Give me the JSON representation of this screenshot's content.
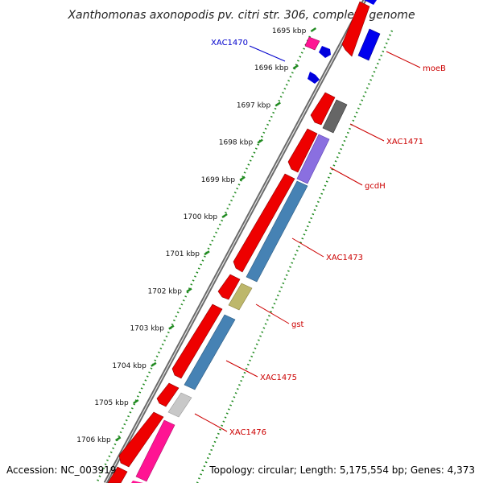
{
  "title": "Xanthomonas axonopodis pv. citri str. 306, complete genome",
  "accession": "Accession: NC_003919",
  "topology": "Topology: circular; Length: 5,175,554 bp; Genes: 4,373",
  "ticks": [
    "1695 kbp",
    "1696 kbp",
    "1697 kbp",
    "1698 kbp",
    "1699 kbp",
    "1700 kbp",
    "1701 kbp",
    "1702 kbp",
    "1703 kbp",
    "1704 kbp",
    "1705 kbp",
    "1706 kbp"
  ],
  "gene_labels": [
    {
      "text": "XAC1470",
      "color": "#0000cc"
    },
    {
      "text": "moeB",
      "color": "#cc0000"
    },
    {
      "text": "XAC1471",
      "color": "#cc0000"
    },
    {
      "text": "gcdH",
      "color": "#cc0000"
    },
    {
      "text": "XAC1473",
      "color": "#cc0000"
    },
    {
      "text": "gst",
      "color": "#cc0000"
    },
    {
      "text": "XAC1475",
      "color": "#cc0000"
    },
    {
      "text": "XAC1476",
      "color": "#cc0000"
    }
  ],
  "colors": {
    "forward_strand": "#ee0000",
    "reverse_strand_blue": "#0000ee",
    "steelblue": "#4682b4",
    "purple": "#8a6fe0",
    "olive": "#bdb76b",
    "gray": "#666666",
    "lightgray": "#c8c8c8",
    "pink": "#ff1493",
    "tick_green": "#228b22"
  }
}
